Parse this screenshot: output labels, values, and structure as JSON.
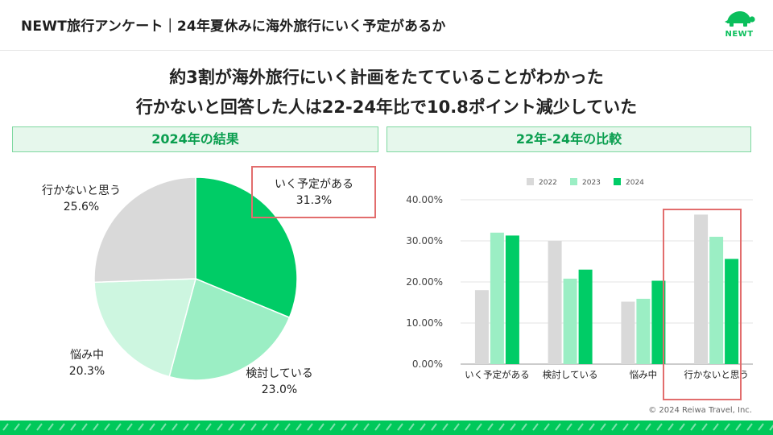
{
  "header": {
    "title": "NEWT旅行アンケート｜24年夏休みに海外旅行にいく予定があるか",
    "logo_text": "NEWT"
  },
  "headline": {
    "line1": "約3割が海外旅行にいく計画をたてていることがわかった",
    "line2": "行かないと回答した人は22-24年比で10.8ポイント減少していた"
  },
  "colors": {
    "brand": "#00c85a",
    "pie": [
      "#00cc66",
      "#9beec4",
      "#cdf6e0",
      "#d9d9d9"
    ],
    "bars": [
      "#d9d9d9",
      "#9beec4",
      "#00cc66"
    ],
    "highlight": "#e26d6d"
  },
  "chart_data": [
    {
      "type": "pie",
      "title": "2024年の結果",
      "labels": [
        "いく予定がある",
        "検討している",
        "悩み中",
        "行かないと思う"
      ],
      "values": [
        31.3,
        23.0,
        20.3,
        25.6
      ],
      "value_labels": [
        "31.3%",
        "23.0%",
        "20.3%",
        "25.6%"
      ],
      "highlighted": "いく予定がある"
    },
    {
      "type": "bar",
      "title": "22年-24年の比較",
      "categories": [
        "いく予定がある",
        "検討している",
        "悩み中",
        "行かないと思う"
      ],
      "series": [
        {
          "name": "2022",
          "values": [
            18.0,
            30.0,
            15.2,
            36.4
          ]
        },
        {
          "name": "2023",
          "values": [
            32.0,
            20.8,
            15.9,
            31.0
          ]
        },
        {
          "name": "2024",
          "values": [
            31.3,
            23.0,
            20.3,
            25.6
          ]
        }
      ],
      "ylim": [
        0,
        40
      ],
      "yticks": [
        "0.00%",
        "10.00%",
        "20.00%",
        "30.00%",
        "40.00%"
      ],
      "grid": true,
      "legend": "top-center",
      "highlighted": "行かないと思う"
    }
  ],
  "footer": {
    "copyright": "© 2024 Reiwa Travel, Inc."
  }
}
